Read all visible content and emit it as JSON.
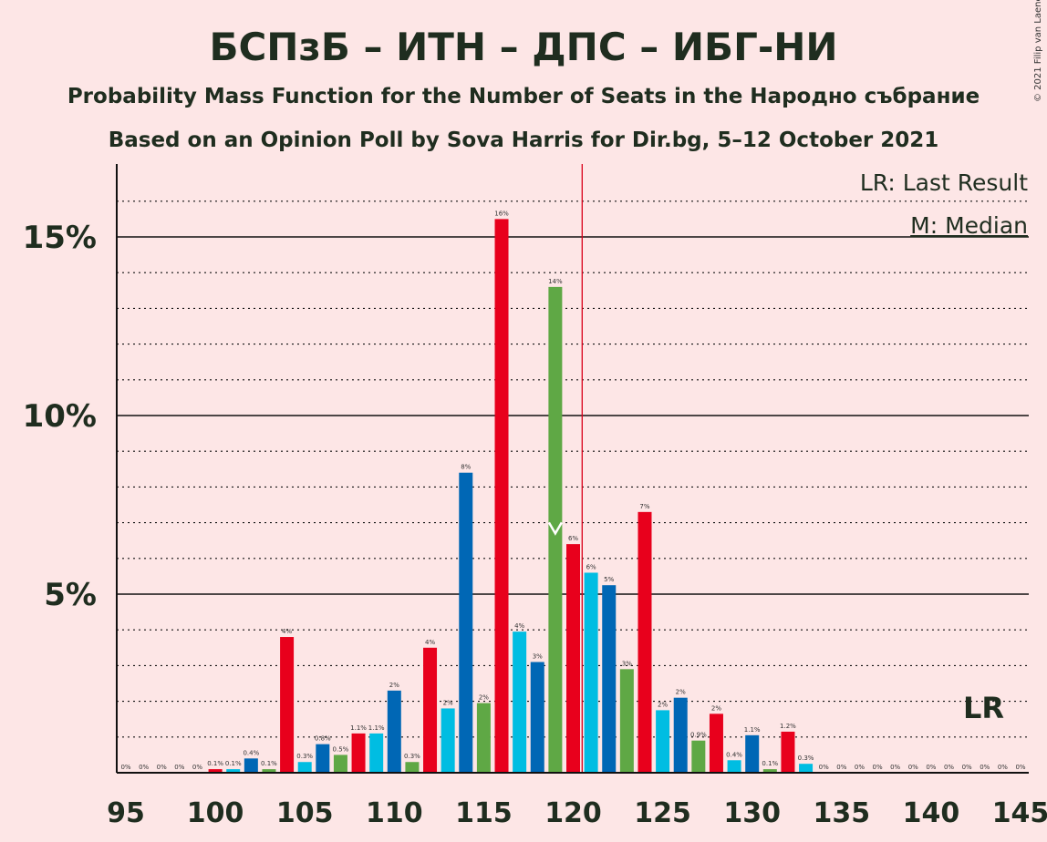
{
  "chart_data": {
    "type": "bar",
    "title": "БСПзБ – ИТН – ДПС – ИБГ-НИ",
    "subtitle": "Probability Mass Function for the Number of Seats in the Народно събрание",
    "subtitle2": "Based on an Opinion Poll by Sova Harris for Dir.bg, 5–12 October 2021",
    "copyright": "© 2021 Filip van Laenen",
    "legend_lr": "LR: Last Result",
    "legend_median": "M: Median",
    "lr_marker": "LR",
    "xlim": [
      95,
      145
    ],
    "ylim": [
      0,
      17
    ],
    "x_ticks": [
      "95",
      "100",
      "105",
      "110",
      "115",
      "120",
      "125",
      "130",
      "135",
      "140",
      "145"
    ],
    "y_ticks": [
      {
        "value": 5,
        "label": "5%"
      },
      {
        "value": 10,
        "label": "10%"
      },
      {
        "value": 15,
        "label": "15%"
      }
    ],
    "last_result": 120.5,
    "median": 119,
    "colors": {
      "background": "#fde6e6",
      "text": "#1f2d1f",
      "red": "#e8001c",
      "cyan": "#00bde2",
      "blue": "#0067b5",
      "green": "#5fa845",
      "lr_line": "#d9001a"
    },
    "bars": [
      {
        "seats": 95,
        "value": 0,
        "label": "0%",
        "color": "red"
      },
      {
        "seats": 96,
        "value": 0,
        "label": "0%",
        "color": "cyan"
      },
      {
        "seats": 97,
        "value": 0,
        "label": "0%",
        "color": "blue"
      },
      {
        "seats": 98,
        "value": 0,
        "label": "0%",
        "color": "green"
      },
      {
        "seats": 99,
        "value": 0,
        "label": "0%",
        "color": "red"
      },
      {
        "seats": 100,
        "value": 0.1,
        "label": "0.1%",
        "color": "red"
      },
      {
        "seats": 101,
        "value": 0.1,
        "label": "0.1%",
        "color": "cyan"
      },
      {
        "seats": 102,
        "value": 0.4,
        "label": "0.4%",
        "color": "blue"
      },
      {
        "seats": 103,
        "value": 0.1,
        "label": "0.1%",
        "color": "green"
      },
      {
        "seats": 104,
        "value": 3.8,
        "label": "4%",
        "color": "red"
      },
      {
        "seats": 105,
        "value": 0.3,
        "label": "0.3%",
        "color": "cyan"
      },
      {
        "seats": 106,
        "value": 0.8,
        "label": "0.8%",
        "color": "blue"
      },
      {
        "seats": 107,
        "value": 0.5,
        "label": "0.5%",
        "color": "green"
      },
      {
        "seats": 108,
        "value": 1.1,
        "label": "1.1%",
        "color": "red"
      },
      {
        "seats": 109,
        "value": 1.1,
        "label": "1.1%",
        "color": "cyan"
      },
      {
        "seats": 110,
        "value": 2.3,
        "label": "2%",
        "color": "blue"
      },
      {
        "seats": 111,
        "value": 0.3,
        "label": "0.3%",
        "color": "green"
      },
      {
        "seats": 112,
        "value": 3.5,
        "label": "4%",
        "color": "red"
      },
      {
        "seats": 113,
        "value": 1.8,
        "label": "2%",
        "color": "cyan"
      },
      {
        "seats": 114,
        "value": 8.4,
        "label": "8%",
        "color": "blue"
      },
      {
        "seats": 115,
        "value": 1.95,
        "label": "2%",
        "color": "green"
      },
      {
        "seats": 116,
        "value": 15.5,
        "label": "16%",
        "color": "red"
      },
      {
        "seats": 117,
        "value": 3.95,
        "label": "4%",
        "color": "cyan"
      },
      {
        "seats": 118,
        "value": 3.1,
        "label": "3%",
        "color": "blue"
      },
      {
        "seats": 119,
        "value": 13.6,
        "label": "14%",
        "color": "green"
      },
      {
        "seats": 120,
        "value": 6.4,
        "label": "6%",
        "color": "red"
      },
      {
        "seats": 121,
        "value": 5.6,
        "label": "6%",
        "color": "cyan"
      },
      {
        "seats": 122,
        "value": 5.25,
        "label": "5%",
        "color": "blue"
      },
      {
        "seats": 123,
        "value": 2.9,
        "label": "3%",
        "color": "green"
      },
      {
        "seats": 124,
        "value": 7.3,
        "label": "7%",
        "color": "red"
      },
      {
        "seats": 125,
        "value": 1.75,
        "label": "2%",
        "color": "cyan"
      },
      {
        "seats": 126,
        "value": 2.1,
        "label": "2%",
        "color": "blue"
      },
      {
        "seats": 127,
        "value": 0.9,
        "label": "0.9%",
        "color": "green"
      },
      {
        "seats": 128,
        "value": 1.65,
        "label": "2%",
        "color": "red"
      },
      {
        "seats": 129,
        "value": 0.35,
        "label": "0.4%",
        "color": "cyan"
      },
      {
        "seats": 130,
        "value": 1.05,
        "label": "1.1%",
        "color": "blue"
      },
      {
        "seats": 131,
        "value": 0.1,
        "label": "0.1%",
        "color": "green"
      },
      {
        "seats": 132,
        "value": 1.15,
        "label": "1.2%",
        "color": "red"
      },
      {
        "seats": 133,
        "value": 0.25,
        "label": "0.3%",
        "color": "cyan"
      },
      {
        "seats": 134,
        "value": 0,
        "label": "0%",
        "color": "blue"
      },
      {
        "seats": 135,
        "value": 0,
        "label": "0%",
        "color": "green"
      },
      {
        "seats": 136,
        "value": 0,
        "label": "0%",
        "color": "red"
      },
      {
        "seats": 137,
        "value": 0,
        "label": "0%",
        "color": "cyan"
      },
      {
        "seats": 138,
        "value": 0,
        "label": "0%",
        "color": "blue"
      },
      {
        "seats": 139,
        "value": 0,
        "label": "0%",
        "color": "green"
      },
      {
        "seats": 140,
        "value": 0,
        "label": "0%",
        "color": "red"
      },
      {
        "seats": 141,
        "value": 0,
        "label": "0%",
        "color": "cyan"
      },
      {
        "seats": 142,
        "value": 0,
        "label": "0%",
        "color": "blue"
      },
      {
        "seats": 143,
        "value": 0,
        "label": "0%",
        "color": "green"
      },
      {
        "seats": 144,
        "value": 0,
        "label": "0%",
        "color": "red"
      },
      {
        "seats": 145,
        "value": 0,
        "label": "0%",
        "color": "cyan"
      }
    ]
  }
}
